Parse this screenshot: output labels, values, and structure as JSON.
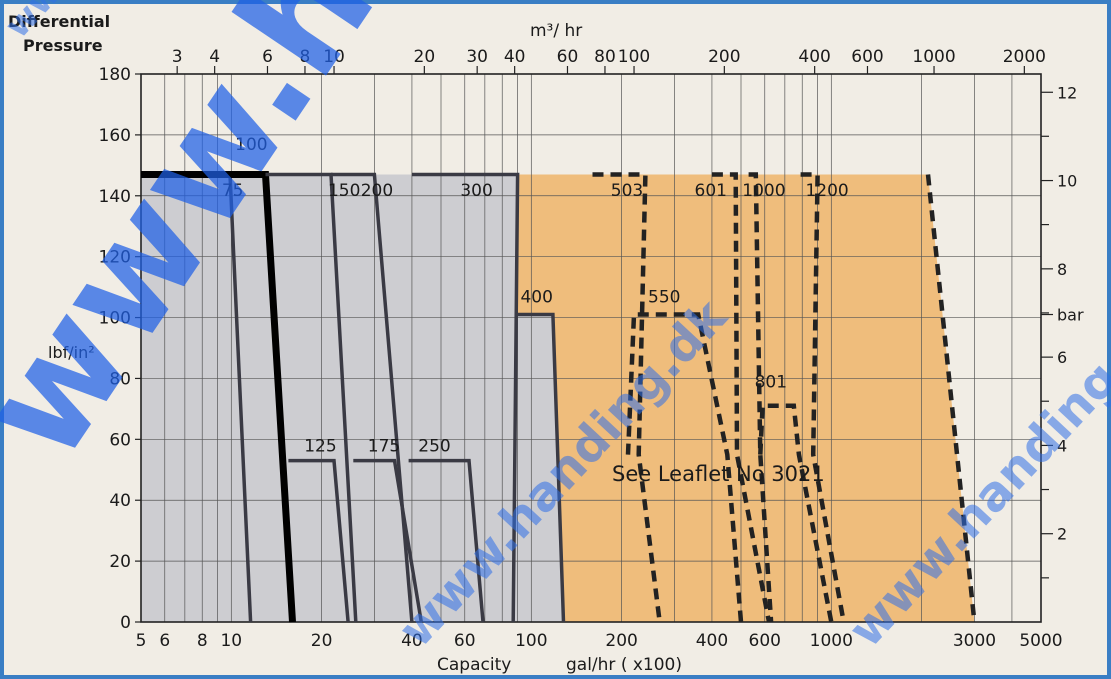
{
  "chart_data": {
    "type": "area",
    "left_axis_title_line1": "Differential",
    "left_axis_title_line2": "Pressure",
    "left_axis_unit": "lbf/in²",
    "right_axis_unit": "bar",
    "top_axis_unit": "m³/ hr",
    "bottom_axis_label": "Capacity",
    "bottom_axis_unit": "gal/hr  ( x100)",
    "note": "See Leaflet No 3021",
    "ylim": [
      0,
      180
    ],
    "xlim": [
      5,
      5000
    ],
    "x_scale": "log",
    "y_ticks": [
      0,
      20,
      40,
      60,
      80,
      100,
      120,
      140,
      160,
      180
    ],
    "right_ticks": [
      {
        "label": "2",
        "psi": 29
      },
      {
        "label": "4",
        "psi": 58
      },
      {
        "label": "6",
        "psi": 87
      },
      {
        "label": "8",
        "psi": 116
      },
      {
        "label": "bar",
        "psi": 101
      },
      {
        "label": "10",
        "psi": 145
      },
      {
        "label": "12",
        "psi": 174
      }
    ],
    "bottom_ticks": [
      {
        "label": "5",
        "x": 5
      },
      {
        "label": "6",
        "x": 6
      },
      {
        "label": "8",
        "x": 8
      },
      {
        "label": "10",
        "x": 10
      },
      {
        "label": "20",
        "x": 20
      },
      {
        "label": "40",
        "x": 40
      },
      {
        "label": "60",
        "x": 60
      },
      {
        "label": "100",
        "x": 100
      },
      {
        "label": "200",
        "x": 200
      },
      {
        "label": "400",
        "x": 400
      },
      {
        "label": "600",
        "x": 600
      },
      {
        "label": "1000",
        "x": 1000
      },
      {
        "label": "3000",
        "x": 3000
      },
      {
        "label": "5000",
        "x": 5000
      }
    ],
    "top_ticks": [
      {
        "label": "3",
        "x": 6.6
      },
      {
        "label": "4",
        "x": 8.8
      },
      {
        "label": "6",
        "x": 13.2
      },
      {
        "label": "8",
        "x": 17.6
      },
      {
        "label": "10",
        "x": 22
      },
      {
        "label": "20",
        "x": 44
      },
      {
        "label": "30",
        "x": 66
      },
      {
        "label": "40",
        "x": 88
      },
      {
        "label": "60",
        "x": 132
      },
      {
        "label": "80",
        "x": 176
      },
      {
        "label": "100",
        "x": 220
      },
      {
        "label": "200",
        "x": 440
      },
      {
        "label": "400",
        "x": 880
      },
      {
        "label": "600",
        "x": 1320
      },
      {
        "label": "1000",
        "x": 2200
      },
      {
        "label": "2000",
        "x": 4400
      }
    ],
    "regions": [
      {
        "name": "gray",
        "color": "#cdcdd1",
        "points": [
          [
            5,
            0
          ],
          [
            5,
            147
          ],
          [
            90,
            147
          ],
          [
            90,
            101
          ],
          [
            118,
            101
          ],
          [
            128,
            0
          ]
        ]
      },
      {
        "name": "orange",
        "color": "#efbd7c",
        "points": [
          [
            90,
            147
          ],
          [
            2100,
            147
          ],
          [
            3000,
            0
          ],
          [
            128,
            0
          ],
          [
            118,
            101
          ],
          [
            90,
            101
          ]
        ]
      }
    ],
    "models": [
      {
        "label": "75",
        "label_at": [
          9.3,
          140
        ],
        "style": "solid",
        "points": [
          [
            8.5,
            147
          ],
          [
            9.2,
            147
          ],
          [
            9.9,
            147
          ],
          [
            11.6,
            0
          ]
        ]
      },
      {
        "label": "100",
        "label_at": [
          10.3,
          155
        ],
        "style": "bold",
        "points": [
          [
            5,
            147
          ],
          [
            13,
            147
          ],
          [
            16,
            0
          ]
        ]
      },
      {
        "label": "125",
        "label_at": [
          17.5,
          56
        ],
        "style": "solid",
        "points": [
          [
            15.5,
            53
          ],
          [
            22,
            53
          ],
          [
            24.5,
            0
          ]
        ]
      },
      {
        "label": "150",
        "label_at": [
          21,
          140
        ],
        "style": "solid",
        "points": [
          [
            13,
            147
          ],
          [
            21.5,
            147
          ],
          [
            26,
            0
          ]
        ]
      },
      {
        "label": "200",
        "label_at": [
          27,
          140
        ],
        "style": "solid",
        "points": [
          [
            21.5,
            147
          ],
          [
            30,
            147
          ],
          [
            40,
            0
          ]
        ]
      },
      {
        "label": "175",
        "label_at": [
          28.5,
          56
        ],
        "style": "solid",
        "points": [
          [
            25.5,
            53
          ],
          [
            35,
            53
          ],
          [
            43,
            0
          ]
        ]
      },
      {
        "label": "250",
        "label_at": [
          42,
          56
        ],
        "style": "solid",
        "points": [
          [
            39,
            53
          ],
          [
            62,
            53
          ],
          [
            69,
            0
          ]
        ]
      },
      {
        "label": "300",
        "label_at": [
          58,
          140
        ],
        "style": "solid",
        "points": [
          [
            40,
            147
          ],
          [
            90,
            147
          ],
          [
            87,
            0
          ]
        ]
      },
      {
        "label": "400",
        "label_at": [
          92,
          105
        ],
        "style": "solid",
        "points": [
          [
            90,
            101
          ],
          [
            118,
            101
          ],
          [
            128,
            0
          ]
        ]
      },
      {
        "label": "503",
        "label_at": [
          184,
          140
        ],
        "style": "dashed",
        "points": [
          [
            160,
            147
          ],
          [
            240,
            147
          ],
          [
            228,
            55
          ],
          [
            268,
            0
          ]
        ]
      },
      {
        "label": "550",
        "label_at": [
          245,
          105
        ],
        "style": "dashed",
        "points": [
          [
            210,
            55
          ],
          [
            220,
            101
          ],
          [
            360,
            101
          ],
          [
            450,
            55
          ],
          [
            500,
            0
          ]
        ]
      },
      {
        "label": "601",
        "label_at": [
          350,
          140
        ],
        "style": "dashed",
        "points": [
          [
            400,
            147
          ],
          [
            480,
            147
          ],
          [
            485,
            55
          ],
          [
            620,
            0
          ]
        ]
      },
      {
        "label": "1000",
        "label_at": [
          505,
          140
        ],
        "style": "dashed",
        "points": [
          [
            530,
            147
          ],
          [
            560,
            147
          ],
          [
            580,
            55
          ],
          [
            630,
            0
          ]
        ]
      },
      {
        "label": "801",
        "label_at": [
          555,
          77
        ],
        "style": "dashed",
        "points": [
          [
            580,
            55
          ],
          [
            590,
            71
          ],
          [
            750,
            71
          ],
          [
            780,
            55
          ],
          [
            1000,
            0
          ]
        ]
      },
      {
        "label": "1200",
        "label_at": [
          820,
          140
        ],
        "style": "dashed",
        "points": [
          [
            790,
            147
          ],
          [
            900,
            147
          ],
          [
            870,
            55
          ],
          [
            1100,
            0
          ]
        ]
      },
      {
        "label": "",
        "label_at": [
          0,
          0
        ],
        "style": "dashed",
        "points": [
          [
            2100,
            147
          ],
          [
            3000,
            0
          ]
        ]
      }
    ]
  },
  "watermark": {
    "big": "www.handing.dk",
    "small": "www.handing.dk"
  }
}
